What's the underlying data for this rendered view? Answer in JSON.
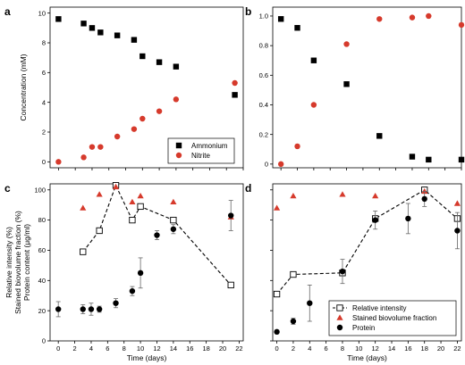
{
  "colors": {
    "black": "#000000",
    "red": "#d63a2c",
    "errorbar": "#666666",
    "dashed": "#000000"
  },
  "chart_data": [
    {
      "panel": "a",
      "type": "scatter",
      "xlabel": "",
      "ylabel": "Concentration (mM)",
      "xlim": [
        -1,
        22
      ],
      "ylim": [
        -0.4,
        10.4
      ],
      "xticks": [
        0,
        2,
        4,
        6,
        8,
        10,
        12,
        14,
        16,
        18,
        20,
        22
      ],
      "yticks": [
        0,
        2,
        4,
        6,
        8,
        10
      ],
      "xtick_labels_shown": false,
      "ytick_labels_shown": true,
      "legend": {
        "position": "bottom-right",
        "entries": [
          "Ammonium",
          "Nitrite"
        ]
      },
      "series": [
        {
          "name": "Ammonium",
          "marker": "square",
          "color": "black",
          "points": [
            [
              0,
              9.6
            ],
            [
              3,
              9.3
            ],
            [
              4,
              9.0
            ],
            [
              5,
              8.7
            ],
            [
              7,
              8.5
            ],
            [
              9,
              8.2
            ],
            [
              10,
              7.1
            ],
            [
              12,
              6.7
            ],
            [
              14,
              6.4
            ],
            [
              21,
              4.5
            ]
          ]
        },
        {
          "name": "Nitrite",
          "marker": "circle",
          "color": "red",
          "points": [
            [
              0,
              0.0
            ],
            [
              3,
              0.3
            ],
            [
              4,
              1.0
            ],
            [
              5,
              1.0
            ],
            [
              7,
              1.7
            ],
            [
              9,
              2.2
            ],
            [
              10,
              2.9
            ],
            [
              12,
              3.4
            ],
            [
              14,
              4.2
            ],
            [
              21,
              5.3
            ]
          ]
        }
      ]
    },
    {
      "panel": "b",
      "type": "scatter",
      "xlabel": "",
      "ylabel": "",
      "xlim": [
        -1,
        22
      ],
      "ylim": [
        -0.025,
        1.06
      ],
      "xticks": [
        0,
        2,
        4,
        6,
        8,
        10,
        12,
        14,
        16,
        18,
        20,
        22
      ],
      "yticks": [
        0,
        0.2,
        0.4,
        0.6,
        0.8,
        1.0
      ],
      "ytick_text": [
        "0",
        "0.2",
        "0.4",
        "0.6",
        "0.8",
        "1.0"
      ],
      "xtick_labels_shown": false,
      "ytick_labels_shown": true,
      "series": [
        {
          "name": "Ammonium",
          "marker": "square",
          "color": "black",
          "points": [
            [
              0,
              0.98
            ],
            [
              2,
              0.92
            ],
            [
              4,
              0.7
            ],
            [
              8,
              0.54
            ],
            [
              12,
              0.19
            ],
            [
              16,
              0.05
            ],
            [
              18,
              0.03
            ],
            [
              22,
              0.03
            ]
          ]
        },
        {
          "name": "Nitrite",
          "marker": "circle",
          "color": "red",
          "points": [
            [
              0,
              0.0
            ],
            [
              2,
              0.12
            ],
            [
              4,
              0.4
            ],
            [
              8,
              0.81
            ],
            [
              12,
              0.98
            ],
            [
              16,
              0.99
            ],
            [
              18,
              1.0
            ],
            [
              22,
              0.94
            ]
          ]
        }
      ]
    },
    {
      "panel": "c",
      "type": "scatter",
      "xlabel": "Time (days)",
      "ylabel_lines": [
        "Relative intensity (%)",
        "Stained biovolume fraction (%)",
        "Protein content (μg/ml)"
      ],
      "xlim": [
        -1,
        22.5
      ],
      "ylim": [
        0,
        104
      ],
      "xticks": [
        0,
        2,
        4,
        6,
        8,
        10,
        12,
        14,
        16,
        18,
        20,
        22
      ],
      "yticks": [
        0,
        20,
        40,
        60,
        80,
        100
      ],
      "xtick_labels_shown": true,
      "ytick_labels_shown": true,
      "series": [
        {
          "name": "Relative intensity",
          "marker": "open-square",
          "color": "black",
          "dashed_line": true,
          "points": [
            [
              3,
              59
            ],
            [
              5,
              73
            ],
            [
              7,
              103
            ],
            [
              9,
              80
            ],
            [
              10,
              89
            ],
            [
              14,
              80
            ],
            [
              21,
              37
            ]
          ]
        },
        {
          "name": "Stained biovolume fraction",
          "marker": "triangle",
          "color": "red",
          "points": [
            [
              3,
              88
            ],
            [
              5,
              97
            ],
            [
              7,
              102
            ],
            [
              9,
              92
            ],
            [
              10,
              96
            ],
            [
              14,
              92
            ],
            [
              21,
              82
            ]
          ]
        },
        {
          "name": "Protein",
          "marker": "circle",
          "color": "black",
          "points": [
            [
              0,
              21
            ],
            [
              3,
              21
            ],
            [
              4,
              21
            ],
            [
              5,
              21
            ],
            [
              7,
              25
            ],
            [
              9,
              33
            ],
            [
              10,
              45
            ],
            [
              12,
              70
            ],
            [
              14,
              74
            ],
            [
              21,
              83
            ]
          ],
          "errors": [
            5,
            3,
            4,
            2,
            3,
            3,
            10,
            3,
            3,
            10
          ]
        }
      ]
    },
    {
      "panel": "d",
      "type": "scatter",
      "xlabel": "Time (days)",
      "ylabel": "",
      "xlim": [
        -0.5,
        22.5
      ],
      "ylim": [
        0,
        1.04
      ],
      "xticks": [
        0,
        2,
        4,
        6,
        8,
        10,
        12,
        14,
        16,
        18,
        20,
        22
      ],
      "yticks": [
        0,
        0.2,
        0.4,
        0.6,
        0.8,
        1.0
      ],
      "xtick_labels_shown": true,
      "ytick_labels_shown": false,
      "legend": {
        "position": "bottom-right",
        "entries": [
          "Relative intensity",
          "Stained biovolume fraction",
          "Protein"
        ]
      },
      "series": [
        {
          "name": "Relative intensity",
          "marker": "open-square",
          "color": "black",
          "dashed_line": true,
          "points": [
            [
              0,
              0.31
            ],
            [
              2,
              0.44
            ],
            [
              8,
              0.45
            ],
            [
              12,
              0.81
            ],
            [
              18,
              1.0
            ],
            [
              22,
              0.81
            ]
          ]
        },
        {
          "name": "Stained biovolume fraction",
          "marker": "triangle",
          "color": "red",
          "points": [
            [
              0,
              0.88
            ],
            [
              2,
              0.96
            ],
            [
              8,
              0.97
            ],
            [
              12,
              0.96
            ],
            [
              18,
              0.99
            ],
            [
              22,
              0.91
            ]
          ]
        },
        {
          "name": "Protein",
          "marker": "circle",
          "color": "black",
          "points": [
            [
              0,
              0.06
            ],
            [
              2,
              0.13
            ],
            [
              4,
              0.25
            ],
            [
              8,
              0.46
            ],
            [
              12,
              0.8
            ],
            [
              16,
              0.81
            ],
            [
              18,
              0.94
            ],
            [
              22,
              0.73
            ]
          ],
          "errors": [
            0.01,
            0.02,
            0.12,
            0.08,
            0.06,
            0.1,
            0.05,
            0.12
          ]
        }
      ]
    }
  ]
}
